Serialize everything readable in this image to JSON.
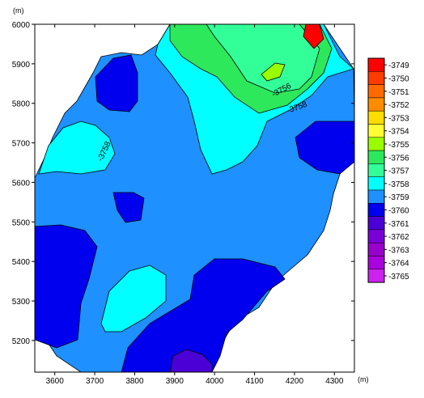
{
  "chart_data": {
    "type": "contour",
    "x_unit": "(m)",
    "y_unit": "(m)",
    "xlim": [
      3550,
      4350
    ],
    "ylim": [
      5120,
      6000
    ],
    "x_ticks": [
      3600,
      3700,
      3800,
      3900,
      4000,
      4100,
      4200,
      4300
    ],
    "y_ticks": [
      5200,
      5300,
      5400,
      5500,
      5600,
      5700,
      5800,
      5900,
      6000
    ],
    "levels": [
      -3765,
      -3764,
      -3763,
      -3762,
      -3761,
      -3760,
      -3759,
      -3758,
      -3757,
      -3756,
      -3755,
      -3754,
      -3753,
      -3752,
      -3751,
      -3750,
      -3749
    ],
    "legend_labels": [
      "-3749",
      "-3750",
      "-3751",
      "-3752",
      "-3753",
      "-3754",
      "-3755",
      "-3756",
      "-3757",
      "-3758",
      "-3759",
      "-3760",
      "-3761",
      "-3762",
      "-3763",
      "-3764",
      "-3765"
    ],
    "legend_colors": [
      "#ff0000",
      "#ff3c00",
      "#ff6a00",
      "#ff8c00",
      "#ffdd00",
      "#ffff33",
      "#99ff00",
      "#2ee85c",
      "#33ff99",
      "#00ffff",
      "#1e90ff",
      "#0000ee",
      "#4b00d6",
      "#7a00d8",
      "#9900cc",
      "#aa00dd",
      "#cc22ee"
    ],
    "contour_labels": [
      "-3756",
      "-3758",
      "-3758"
    ],
    "legend_position": "right"
  }
}
